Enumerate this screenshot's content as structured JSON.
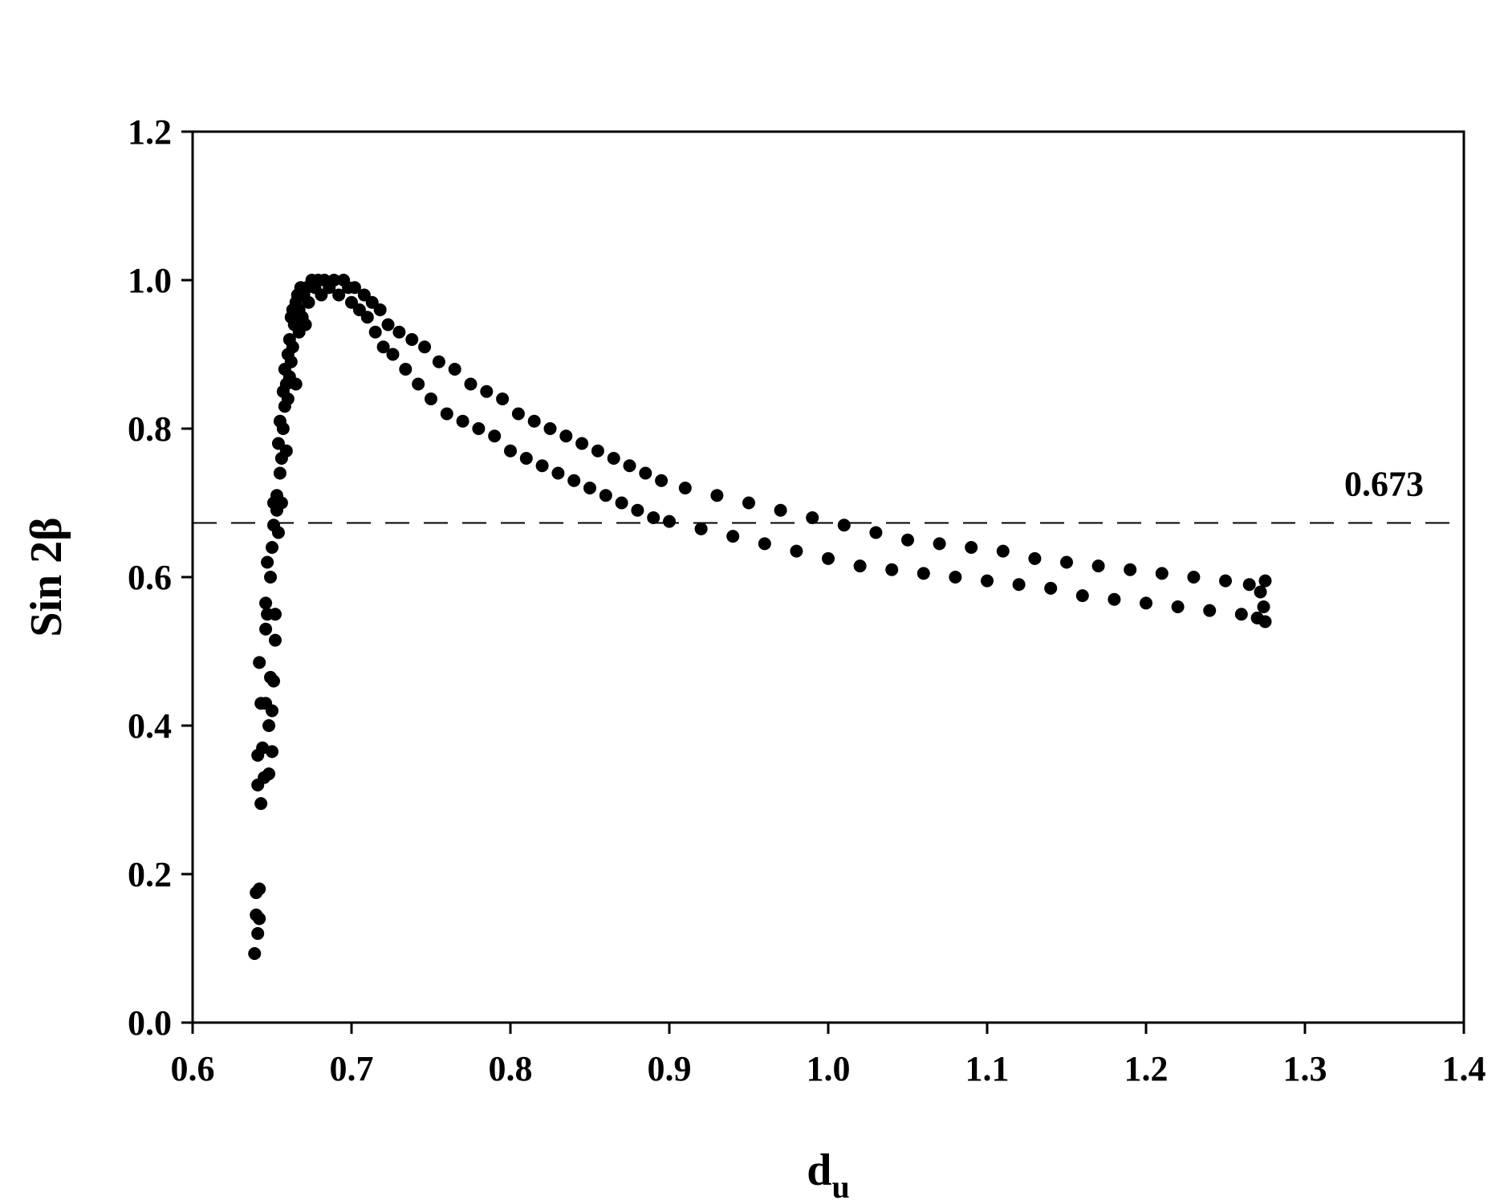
{
  "chart_data": {
    "type": "scatter",
    "title": "",
    "xlabel": "d",
    "xlabel_subscript": "u",
    "ylabel": "Sin 2β",
    "xlim": [
      0.6,
      1.4
    ],
    "ylim": [
      0.0,
      1.2
    ],
    "x_ticks": [
      "0.6",
      "0.7",
      "0.8",
      "0.9",
      "1.0",
      "1.1",
      "1.2",
      "1.3",
      "1.4"
    ],
    "y_ticks": [
      "0.0",
      "0.2",
      "0.4",
      "0.6",
      "0.8",
      "1.0",
      "1.2"
    ],
    "grid": false,
    "legend": "none",
    "marker_color": "#000000",
    "reference_line": {
      "y": 0.673,
      "label": "0.673",
      "style": "dashed"
    },
    "series": [
      {
        "points": [
          [
            0.639,
            0.093
          ],
          [
            0.64,
            0.145
          ],
          [
            0.64,
            0.175
          ],
          [
            0.641,
            0.12
          ],
          [
            0.642,
            0.18
          ],
          [
            0.642,
            0.14
          ],
          [
            0.641,
            0.32
          ],
          [
            0.641,
            0.36
          ],
          [
            0.642,
            0.485
          ],
          [
            0.643,
            0.43
          ],
          [
            0.643,
            0.295
          ],
          [
            0.644,
            0.37
          ],
          [
            0.645,
            0.33
          ],
          [
            0.646,
            0.53
          ],
          [
            0.646,
            0.565
          ],
          [
            0.646,
            0.43
          ],
          [
            0.647,
            0.55
          ],
          [
            0.647,
            0.62
          ],
          [
            0.648,
            0.335
          ],
          [
            0.648,
            0.4
          ],
          [
            0.649,
            0.465
          ],
          [
            0.649,
            0.6
          ],
          [
            0.65,
            0.365
          ],
          [
            0.65,
            0.42
          ],
          [
            0.65,
            0.64
          ],
          [
            0.651,
            0.46
          ],
          [
            0.651,
            0.67
          ],
          [
            0.651,
            0.7
          ],
          [
            0.652,
            0.55
          ],
          [
            0.652,
            0.515
          ],
          [
            0.653,
            0.71
          ],
          [
            0.653,
            0.69
          ],
          [
            0.654,
            0.66
          ],
          [
            0.654,
            0.78
          ],
          [
            0.655,
            0.81
          ],
          [
            0.655,
            0.74
          ],
          [
            0.656,
            0.7
          ],
          [
            0.656,
            0.76
          ],
          [
            0.657,
            0.8
          ],
          [
            0.657,
            0.85
          ],
          [
            0.658,
            0.88
          ],
          [
            0.658,
            0.83
          ],
          [
            0.659,
            0.86
          ],
          [
            0.659,
            0.77
          ],
          [
            0.66,
            0.9
          ],
          [
            0.66,
            0.84
          ],
          [
            0.661,
            0.92
          ],
          [
            0.661,
            0.87
          ],
          [
            0.662,
            0.95
          ],
          [
            0.662,
            0.89
          ],
          [
            0.663,
            0.96
          ],
          [
            0.663,
            0.91
          ],
          [
            0.664,
            0.94
          ],
          [
            0.665,
            0.97
          ],
          [
            0.665,
            0.86
          ],
          [
            0.666,
            0.98
          ],
          [
            0.667,
            0.93
          ],
          [
            0.667,
            0.96
          ],
          [
            0.668,
            0.99
          ],
          [
            0.669,
            0.95
          ],
          [
            0.67,
            0.98
          ],
          [
            0.671,
            0.94
          ],
          [
            0.672,
            0.99
          ],
          [
            0.673,
            0.97
          ],
          [
            0.675,
            1.0
          ],
          [
            0.677,
            0.99
          ],
          [
            0.679,
            1.0
          ],
          [
            0.681,
            0.98
          ],
          [
            0.683,
            1.0
          ],
          [
            0.686,
            0.99
          ],
          [
            0.689,
            1.0
          ],
          [
            0.692,
            0.98
          ],
          [
            0.695,
            1.0
          ],
          [
            0.698,
            0.99
          ],
          [
            0.7,
            0.97
          ],
          [
            0.702,
            0.99
          ],
          [
            0.705,
            0.96
          ],
          [
            0.708,
            0.98
          ],
          [
            0.71,
            0.95
          ],
          [
            0.713,
            0.97
          ],
          [
            0.715,
            0.93
          ],
          [
            0.718,
            0.96
          ],
          [
            0.72,
            0.91
          ],
          [
            0.723,
            0.94
          ],
          [
            0.726,
            0.9
          ],
          [
            0.73,
            0.93
          ],
          [
            0.734,
            0.88
          ],
          [
            0.738,
            0.92
          ],
          [
            0.742,
            0.86
          ],
          [
            0.746,
            0.91
          ],
          [
            0.75,
            0.84
          ],
          [
            0.755,
            0.89
          ],
          [
            0.76,
            0.82
          ],
          [
            0.765,
            0.88
          ],
          [
            0.77,
            0.81
          ],
          [
            0.775,
            0.86
          ],
          [
            0.78,
            0.8
          ],
          [
            0.785,
            0.85
          ],
          [
            0.79,
            0.79
          ],
          [
            0.795,
            0.84
          ],
          [
            0.8,
            0.77
          ],
          [
            0.805,
            0.82
          ],
          [
            0.81,
            0.76
          ],
          [
            0.815,
            0.81
          ],
          [
            0.82,
            0.75
          ],
          [
            0.825,
            0.8
          ],
          [
            0.83,
            0.74
          ],
          [
            0.835,
            0.79
          ],
          [
            0.84,
            0.73
          ],
          [
            0.845,
            0.78
          ],
          [
            0.85,
            0.72
          ],
          [
            0.855,
            0.77
          ],
          [
            0.86,
            0.71
          ],
          [
            0.865,
            0.76
          ],
          [
            0.87,
            0.7
          ],
          [
            0.875,
            0.75
          ],
          [
            0.88,
            0.69
          ],
          [
            0.885,
            0.74
          ],
          [
            0.89,
            0.68
          ],
          [
            0.895,
            0.73
          ],
          [
            0.9,
            0.675
          ],
          [
            0.91,
            0.72
          ],
          [
            0.92,
            0.665
          ],
          [
            0.93,
            0.71
          ],
          [
            0.94,
            0.655
          ],
          [
            0.95,
            0.7
          ],
          [
            0.96,
            0.645
          ],
          [
            0.97,
            0.69
          ],
          [
            0.98,
            0.635
          ],
          [
            0.99,
            0.68
          ],
          [
            1.0,
            0.625
          ],
          [
            1.01,
            0.67
          ],
          [
            1.02,
            0.615
          ],
          [
            1.03,
            0.66
          ],
          [
            1.04,
            0.61
          ],
          [
            1.05,
            0.65
          ],
          [
            1.06,
            0.605
          ],
          [
            1.07,
            0.645
          ],
          [
            1.08,
            0.6
          ],
          [
            1.09,
            0.64
          ],
          [
            1.1,
            0.595
          ],
          [
            1.11,
            0.635
          ],
          [
            1.12,
            0.59
          ],
          [
            1.13,
            0.625
          ],
          [
            1.14,
            0.585
          ],
          [
            1.15,
            0.62
          ],
          [
            1.16,
            0.575
          ],
          [
            1.17,
            0.615
          ],
          [
            1.18,
            0.57
          ],
          [
            1.19,
            0.61
          ],
          [
            1.2,
            0.565
          ],
          [
            1.21,
            0.605
          ],
          [
            1.22,
            0.56
          ],
          [
            1.23,
            0.6
          ],
          [
            1.24,
            0.555
          ],
          [
            1.25,
            0.595
          ],
          [
            1.26,
            0.55
          ],
          [
            1.265,
            0.59
          ],
          [
            1.27,
            0.545
          ],
          [
            1.272,
            0.58
          ],
          [
            1.274,
            0.56
          ],
          [
            1.275,
            0.595
          ],
          [
            1.275,
            0.54
          ]
        ]
      }
    ]
  }
}
